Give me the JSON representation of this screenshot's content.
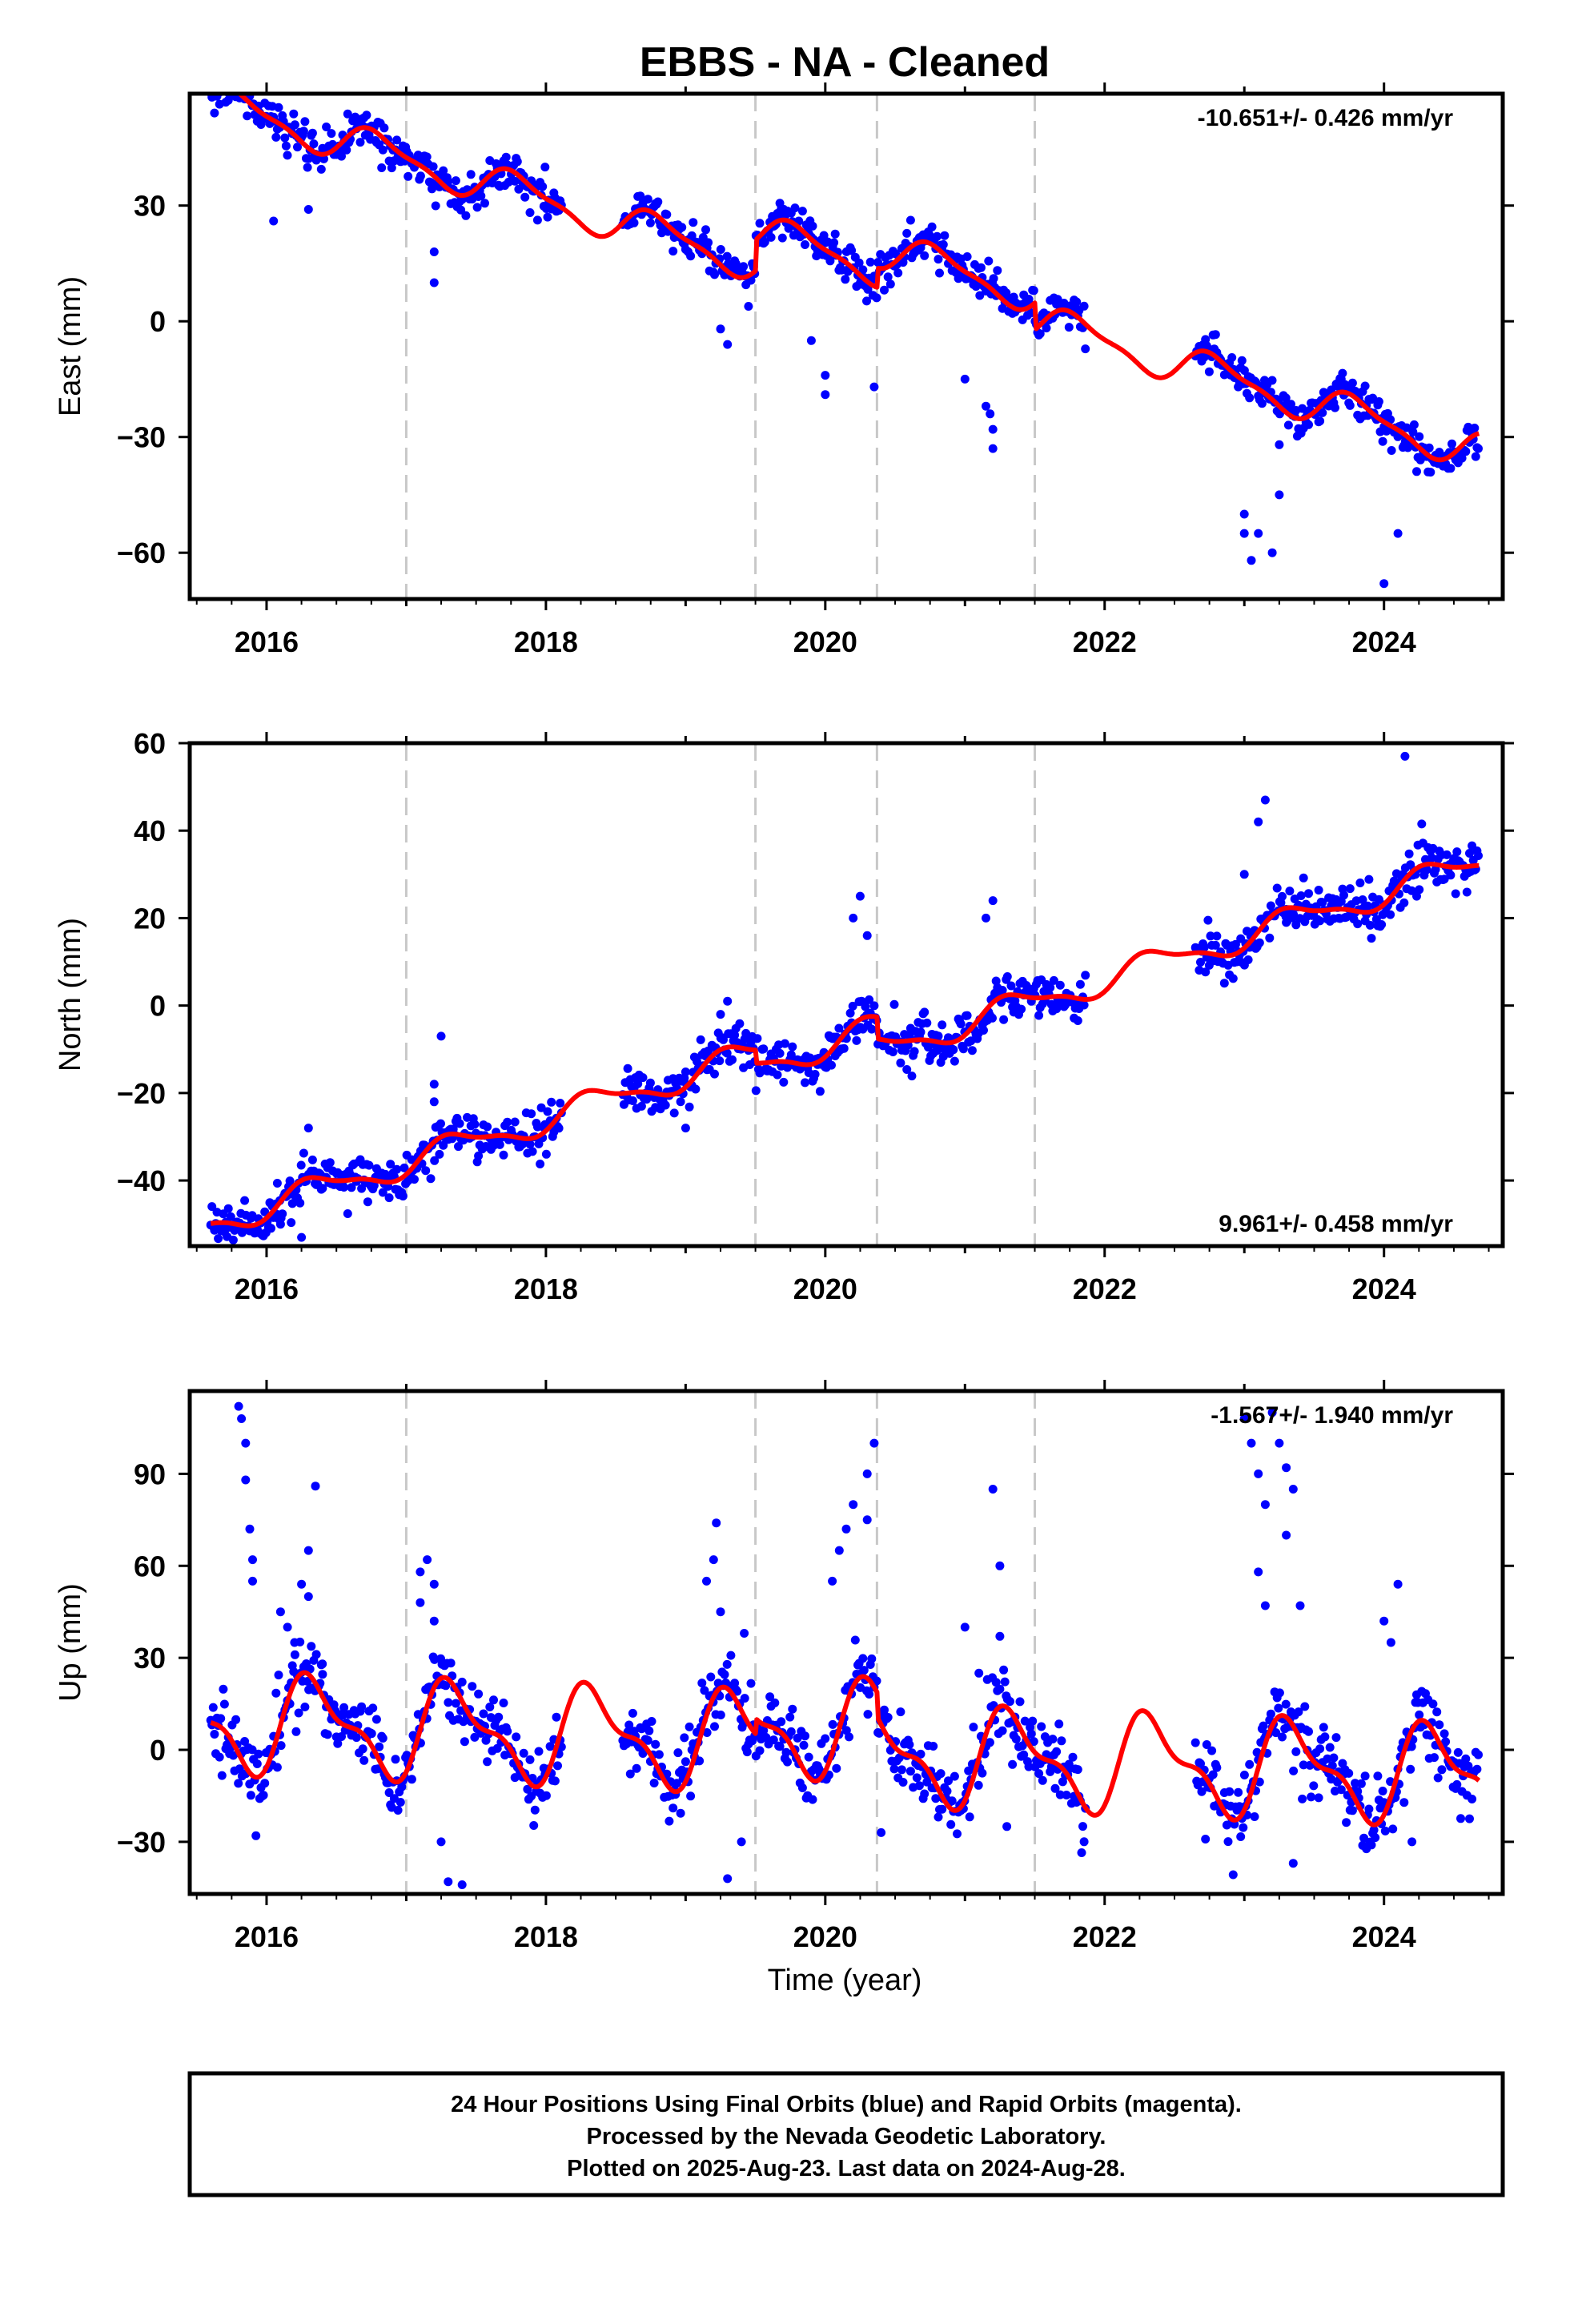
{
  "title": "EBBS  - NA - Cleaned",
  "colors": {
    "data": "#0000ff",
    "model": "#ff0000",
    "breaks": "#c8c8c8",
    "frame": "#000000"
  },
  "chart_data": [
    {
      "type": "scatter",
      "ylabel": "East (mm)",
      "xlabel": "",
      "rate_label": "-10.651+/- 0.426 mm/yr",
      "rate_position": "top-right",
      "xlim": [
        2015.45,
        2024.85
      ],
      "ylim": [
        -72,
        59
      ],
      "xticks": [
        2016,
        2018,
        2020,
        2022,
        2024
      ],
      "yticks": [
        -60,
        -30,
        0,
        30
      ],
      "breaks": [
        2017.0,
        2019.5,
        2020.37,
        2021.5
      ],
      "data_segments": [
        [
          2015.6,
          2018.12
        ],
        [
          2018.55,
          2021.87
        ],
        [
          2022.65,
          2024.68
        ]
      ],
      "model": {
        "slope": -10.651,
        "anchor": [
          2020.0,
          10.0
        ],
        "offsets": [
          [
            2019.5,
            8.0
          ],
          [
            2020.37,
            5.0
          ],
          [
            2021.5,
            -7.0
          ]
        ],
        "annual_amp": 4.5,
        "annual_phase": 0.55,
        "semi_amp": 1.5
      },
      "noise": 2.5,
      "outliers": [
        [
          2016.05,
          26
        ],
        [
          2016.3,
          29
        ],
        [
          2017.2,
          10
        ],
        [
          2017.2,
          18
        ],
        [
          2019.3,
          -6
        ],
        [
          2019.25,
          -2
        ],
        [
          2019.9,
          -5
        ],
        [
          2020.0,
          -19
        ],
        [
          2020.0,
          -14
        ],
        [
          2020.35,
          -17
        ],
        [
          2021.0,
          -15
        ],
        [
          2021.15,
          -22
        ],
        [
          2021.2,
          -28
        ],
        [
          2021.2,
          -33
        ],
        [
          2021.18,
          -24
        ],
        [
          2023.0,
          -50
        ],
        [
          2023.0,
          -55
        ],
        [
          2023.05,
          -62
        ],
        [
          2023.1,
          -55
        ],
        [
          2023.2,
          -60
        ],
        [
          2023.25,
          -45
        ],
        [
          2023.25,
          -32
        ],
        [
          2024.0,
          -68
        ],
        [
          2024.1,
          -55
        ]
      ]
    },
    {
      "type": "scatter",
      "ylabel": "North (mm)",
      "xlabel": "",
      "rate_label": "9.961+/- 0.458 mm/yr",
      "rate_position": "bottom-right",
      "xlim": [
        2015.45,
        2024.85
      ],
      "ylim": [
        -55,
        60
      ],
      "xticks": [
        2016,
        2018,
        2020,
        2022,
        2024
      ],
      "yticks": [
        -40,
        -20,
        0,
        20,
        40,
        60
      ],
      "breaks": [
        2017.0,
        2019.5,
        2020.37,
        2021.5
      ],
      "data_segments": [
        [
          2015.6,
          2018.12
        ],
        [
          2018.55,
          2021.87
        ],
        [
          2022.65,
          2024.68
        ]
      ],
      "model": {
        "slope": 9.961,
        "anchor": [
          2020.0,
          -6.0
        ],
        "offsets": [
          [
            2019.5,
            -3.0
          ],
          [
            2020.37,
            -5.0
          ],
          [
            2021.5,
            0.0
          ]
        ],
        "annual_amp": 3.0,
        "annual_phase": 0.1,
        "semi_amp": 1.0
      },
      "noise": 2.5,
      "outliers": [
        [
          2016.1,
          -50
        ],
        [
          2016.25,
          -53
        ],
        [
          2016.3,
          -28
        ],
        [
          2017.2,
          -22
        ],
        [
          2017.25,
          -7
        ],
        [
          2017.2,
          -18
        ],
        [
          2019.0,
          -28
        ],
        [
          2019.25,
          -2
        ],
        [
          2019.3,
          1
        ],
        [
          2020.2,
          20
        ],
        [
          2020.25,
          25
        ],
        [
          2020.3,
          16
        ],
        [
          2021.15,
          20
        ],
        [
          2021.2,
          24
        ],
        [
          2023.0,
          30
        ],
        [
          2023.1,
          42
        ],
        [
          2023.15,
          47
        ],
        [
          2023.3,
          19
        ],
        [
          2023.3,
          22
        ],
        [
          2024.15,
          57
        ]
      ]
    },
    {
      "type": "scatter",
      "ylabel": "Up (mm)",
      "xlabel": "Time (year)",
      "rate_label": "-1.567+/- 1.940 mm/yr",
      "rate_position": "top-right",
      "xlim": [
        2015.45,
        2024.85
      ],
      "ylim": [
        -47,
        117
      ],
      "xticks": [
        2016,
        2018,
        2020,
        2022,
        2024
      ],
      "yticks": [
        -30,
        0,
        30,
        60,
        90
      ],
      "breaks": [
        2017.0,
        2019.5,
        2020.37,
        2021.5
      ],
      "data_segments": [
        [
          2015.6,
          2018.12
        ],
        [
          2018.55,
          2021.87
        ],
        [
          2022.65,
          2024.68
        ]
      ],
      "model": {
        "slope": -1.567,
        "anchor": [
          2020.0,
          2.0
        ],
        "offsets": [
          [
            2019.5,
            5.0
          ],
          [
            2020.37,
            -8.0
          ],
          [
            2021.5,
            0.0
          ]
        ],
        "annual_amp": 14.0,
        "annual_phase": 0.1,
        "semi_amp": 6.0
      },
      "noise": 6,
      "outliers": [
        [
          2015.8,
          112
        ],
        [
          2015.82,
          108
        ],
        [
          2015.85,
          100
        ],
        [
          2015.85,
          88
        ],
        [
          2015.88,
          72
        ],
        [
          2015.9,
          62
        ],
        [
          2015.9,
          55
        ],
        [
          2016.1,
          45
        ],
        [
          2016.15,
          40
        ],
        [
          2016.2,
          35
        ],
        [
          2016.25,
          54
        ],
        [
          2016.3,
          65
        ],
        [
          2016.3,
          50
        ],
        [
          2016.35,
          86
        ],
        [
          2016.4,
          28
        ],
        [
          2017.1,
          58
        ],
        [
          2017.15,
          62
        ],
        [
          2017.2,
          54
        ],
        [
          2017.2,
          42
        ],
        [
          2017.1,
          48
        ],
        [
          2017.25,
          -30
        ],
        [
          2017.3,
          -43
        ],
        [
          2017.4,
          -44
        ],
        [
          2019.15,
          55
        ],
        [
          2019.2,
          62
        ],
        [
          2019.22,
          74
        ],
        [
          2019.25,
          45
        ],
        [
          2019.3,
          -42
        ],
        [
          2019.4,
          -30
        ],
        [
          2019.42,
          38
        ],
        [
          2020.05,
          55
        ],
        [
          2020.1,
          65
        ],
        [
          2020.15,
          72
        ],
        [
          2020.2,
          80
        ],
        [
          2020.3,
          90
        ],
        [
          2020.35,
          100
        ],
        [
          2020.3,
          75
        ],
        [
          2020.4,
          -27
        ],
        [
          2021.0,
          40
        ],
        [
          2021.1,
          25
        ],
        [
          2021.2,
          85
        ],
        [
          2021.25,
          60
        ],
        [
          2021.25,
          37
        ],
        [
          2021.3,
          -25
        ],
        [
          2023.0,
          108
        ],
        [
          2023.05,
          100
        ],
        [
          2023.1,
          90
        ],
        [
          2023.15,
          80
        ],
        [
          2023.1,
          58
        ],
        [
          2023.15,
          47
        ],
        [
          2023.2,
          110
        ],
        [
          2023.25,
          100
        ],
        [
          2023.3,
          92
        ],
        [
          2023.35,
          85
        ],
        [
          2023.3,
          70
        ],
        [
          2023.4,
          47
        ],
        [
          2023.35,
          -37
        ],
        [
          2024.0,
          42
        ],
        [
          2024.1,
          54
        ],
        [
          2024.05,
          35
        ],
        [
          2024.2,
          -30
        ]
      ]
    }
  ],
  "footer": {
    "line1": "24 Hour Positions Using Final Orbits (blue) and Rapid Orbits (magenta).",
    "line2": "Processed by the Nevada Geodetic Laboratory.",
    "line3": "Plotted on 2025-Aug-23. Last data on 2024-Aug-28."
  }
}
